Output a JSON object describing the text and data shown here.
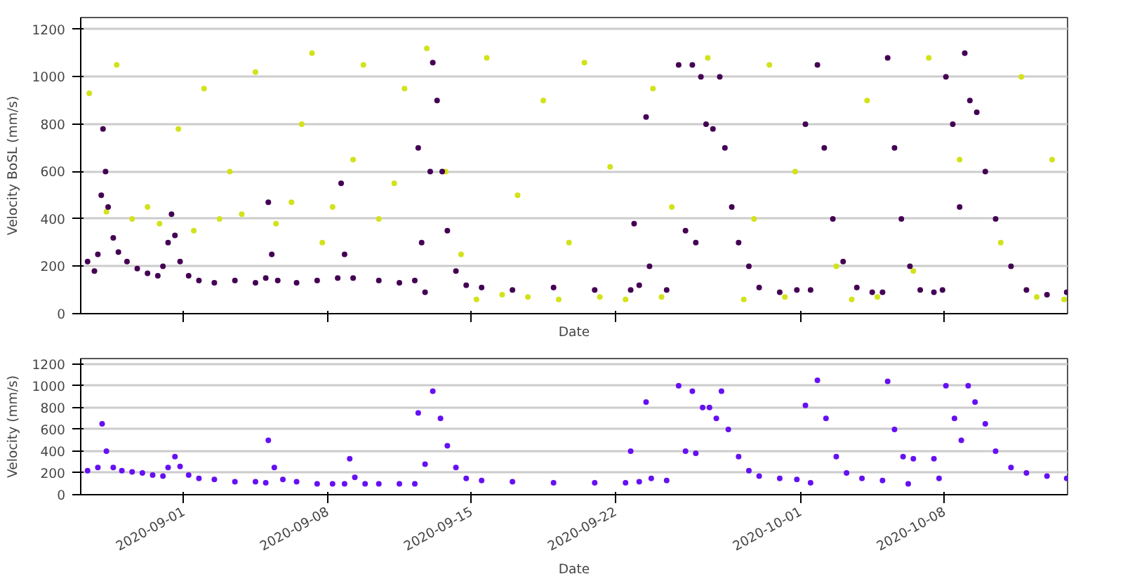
{
  "chart_data": [
    {
      "type": "scatter",
      "xlabel": "Date",
      "ylabel": "Velocity BoSL (mm/s)",
      "xlim": [
        "2020-08-27",
        "2020-10-14"
      ],
      "ylim": [
        0,
        1250
      ],
      "yticks": [
        0,
        200,
        400,
        600,
        800,
        1000,
        1200
      ],
      "xticks": [
        {
          "value": "2020-09-01",
          "label": null
        },
        {
          "value": "2020-09-08",
          "label": null
        },
        {
          "value": "2020-09-15",
          "label": null
        },
        {
          "value": "2020-09-22",
          "label": null
        },
        {
          "value": "2020-10-01",
          "label": null
        },
        {
          "value": "2020-10-08",
          "label": null
        }
      ],
      "tick_labels": "y",
      "grid": "y",
      "marker": "circle",
      "series": [
        {
          "color": "#d2e21b",
          "x": [
            "2020-08-27T10:00",
            "2020-08-28T06:00",
            "2020-08-28T18:00",
            "2020-08-29T12:00",
            "2020-08-30T06:00",
            "2020-08-30T20:00",
            "2020-08-31T18:00",
            "2020-09-01T12:00",
            "2020-09-02T00:00",
            "2020-09-02T18:00",
            "2020-09-03T06:00",
            "2020-09-03T20:00",
            "2020-09-04T12:00",
            "2020-09-05T12:00",
            "2020-09-06T06:00",
            "2020-09-06T18:00",
            "2020-09-07T06:00",
            "2020-09-07T18:00",
            "2020-09-08T06:00",
            "2020-09-09T06:00",
            "2020-09-09T18:00",
            "2020-09-10T12:00",
            "2020-09-11T06:00",
            "2020-09-11T18:00",
            "2020-09-12T20:00",
            "2020-09-13T18:00",
            "2020-09-14T12:00",
            "2020-09-15T06:00",
            "2020-09-15T18:00",
            "2020-09-16T12:00",
            "2020-09-17T06:00",
            "2020-09-17T18:00",
            "2020-09-18T12:00",
            "2020-09-19T06:00",
            "2020-09-19T18:00",
            "2020-09-20T12:00",
            "2020-09-21T06:00",
            "2020-09-21T18:00",
            "2020-09-22T12:00",
            "2020-09-23T20:00",
            "2020-09-24T06:00",
            "2020-09-24T18:00",
            "2020-09-26T12:00",
            "2020-09-28T06:00",
            "2020-09-28T18:00",
            "2020-09-29T12:00",
            "2020-09-30T06:00",
            "2020-09-30T18:00",
            "2020-10-02T18:00",
            "2020-10-03T12:00",
            "2020-10-04T06:00",
            "2020-10-04T18:00",
            "2020-10-06T12:00",
            "2020-10-07T06:00",
            "2020-10-08T18:00",
            "2020-10-10T18:00",
            "2020-10-11T18:00",
            "2020-10-12T12:00",
            "2020-10-13T06:00",
            "2020-10-13T20:00"
          ],
          "values": [
            930,
            430,
            1050,
            400,
            450,
            380,
            780,
            350,
            950,
            400,
            600,
            420,
            1020,
            380,
            470,
            800,
            1100,
            300,
            450,
            650,
            1050,
            400,
            550,
            950,
            1120,
            600,
            250,
            60,
            1080,
            80,
            500,
            70,
            900,
            60,
            300,
            1060,
            70,
            620,
            60,
            950,
            70,
            450,
            1080,
            60,
            400,
            1050,
            70,
            600,
            200,
            60,
            900,
            70,
            180,
            1080,
            650,
            300,
            1000,
            70,
            650,
            60
          ]
        },
        {
          "color": "#440154",
          "x": [
            "2020-08-27T08:00",
            "2020-08-27T16:00",
            "2020-08-27T20:00",
            "2020-08-28T00:00",
            "2020-08-28T02:00",
            "2020-08-28T05:00",
            "2020-08-28T08:00",
            "2020-08-28T14:00",
            "2020-08-28T20:00",
            "2020-08-29T06:00",
            "2020-08-29T18:00",
            "2020-08-30T06:00",
            "2020-08-30T18:00",
            "2020-08-31T00:00",
            "2020-08-31T06:00",
            "2020-08-31T10:00",
            "2020-08-31T14:00",
            "2020-08-31T20:00",
            "2020-09-01T06:00",
            "2020-09-01T18:00",
            "2020-09-02T12:00",
            "2020-09-03T12:00",
            "2020-09-04T12:00",
            "2020-09-05T00:00",
            "2020-09-05T03:00",
            "2020-09-05T07:00",
            "2020-09-05T14:00",
            "2020-09-06T12:00",
            "2020-09-07T12:00",
            "2020-09-08T12:00",
            "2020-09-08T16:00",
            "2020-09-08T20:00",
            "2020-09-09T06:00",
            "2020-09-10T12:00",
            "2020-09-11T12:00",
            "2020-09-12T06:00",
            "2020-09-12T10:00",
            "2020-09-12T14:00",
            "2020-09-12T18:00",
            "2020-09-13T00:00",
            "2020-09-13T03:00",
            "2020-09-13T08:00",
            "2020-09-13T14:00",
            "2020-09-13T20:00",
            "2020-09-14T06:00",
            "2020-09-14T18:00",
            "2020-09-15T12:00",
            "2020-09-17T00:00",
            "2020-09-19T00:00",
            "2020-09-21T00:00",
            "2020-09-22T18:00",
            "2020-09-22T22:00",
            "2020-09-23T04:00",
            "2020-09-23T12:00",
            "2020-09-23T16:00",
            "2020-09-24T12:00",
            "2020-09-25T02:00",
            "2020-09-25T10:00",
            "2020-09-25T18:00",
            "2020-09-25T22:00",
            "2020-09-26T04:00",
            "2020-09-26T10:00",
            "2020-09-26T18:00",
            "2020-09-27T02:00",
            "2020-09-27T08:00",
            "2020-09-27T16:00",
            "2020-09-28T00:00",
            "2020-09-28T12:00",
            "2020-09-29T00:00",
            "2020-09-30T00:00",
            "2020-09-30T20:00",
            "2020-10-01T06:00",
            "2020-10-01T12:00",
            "2020-10-01T20:00",
            "2020-10-02T04:00",
            "2020-10-02T14:00",
            "2020-10-03T02:00",
            "2020-10-03T18:00",
            "2020-10-04T12:00",
            "2020-10-05T00:00",
            "2020-10-05T06:00",
            "2020-10-05T14:00",
            "2020-10-05T22:00",
            "2020-10-06T08:00",
            "2020-10-06T20:00",
            "2020-10-07T12:00",
            "2020-10-07T22:00",
            "2020-10-08T02:00",
            "2020-10-08T10:00",
            "2020-10-08T18:00",
            "2020-10-09T00:00",
            "2020-10-09T06:00",
            "2020-10-09T14:00",
            "2020-10-10T00:00",
            "2020-10-10T12:00",
            "2020-10-11T06:00",
            "2020-10-12T00:00",
            "2020-10-13T00:00",
            "2020-10-13T23:00"
          ],
          "values": [
            220,
            180,
            250,
            500,
            780,
            600,
            450,
            320,
            260,
            220,
            190,
            170,
            160,
            200,
            300,
            420,
            330,
            220,
            160,
            140,
            130,
            140,
            130,
            150,
            470,
            250,
            140,
            130,
            140,
            150,
            550,
            250,
            150,
            140,
            130,
            140,
            700,
            300,
            90,
            600,
            1060,
            900,
            600,
            350,
            180,
            120,
            110,
            100,
            110,
            100,
            100,
            380,
            120,
            830,
            200,
            100,
            1050,
            350,
            1050,
            300,
            1000,
            800,
            780,
            1000,
            700,
            450,
            300,
            200,
            110,
            90,
            100,
            800,
            100,
            1050,
            700,
            400,
            220,
            110,
            90,
            90,
            1080,
            700,
            400,
            200,
            100,
            90,
            100,
            1000,
            800,
            450,
            1100,
            900,
            850,
            600,
            400,
            200,
            100,
            80,
            90
          ]
        }
      ]
    },
    {
      "type": "scatter",
      "xlabel": "Date",
      "ylabel": "Velocity (mm/s)",
      "xlim": [
        "2020-08-27",
        "2020-10-14"
      ],
      "ylim": [
        0,
        1250
      ],
      "yticks": [
        0,
        200,
        400,
        600,
        800,
        1000,
        1200
      ],
      "xticks": [
        "2020-09-01",
        "2020-09-08",
        "2020-09-15",
        "2020-09-22",
        "2020-10-01",
        "2020-10-08"
      ],
      "grid": "y",
      "marker": "circle",
      "series": [
        {
          "color": "#6610f2",
          "x": [
            "2020-08-27T08:00",
            "2020-08-27T20:00",
            "2020-08-28T01:00",
            "2020-08-28T06:00",
            "2020-08-28T14:00",
            "2020-08-29T00:00",
            "2020-08-29T12:00",
            "2020-08-30T00:00",
            "2020-08-30T12:00",
            "2020-08-31T00:00",
            "2020-08-31T06:00",
            "2020-08-31T14:00",
            "2020-08-31T20:00",
            "2020-09-01T06:00",
            "2020-09-01T18:00",
            "2020-09-02T12:00",
            "2020-09-03T12:00",
            "2020-09-04T12:00",
            "2020-09-05T00:00",
            "2020-09-05T03:00",
            "2020-09-05T10:00",
            "2020-09-05T20:00",
            "2020-09-06T12:00",
            "2020-09-07T12:00",
            "2020-09-08T06:00",
            "2020-09-08T20:00",
            "2020-09-09T02:00",
            "2020-09-09T08:00",
            "2020-09-09T20:00",
            "2020-09-10T12:00",
            "2020-09-11T12:00",
            "2020-09-12T06:00",
            "2020-09-12T10:00",
            "2020-09-12T18:00",
            "2020-09-13T03:00",
            "2020-09-13T12:00",
            "2020-09-13T20:00",
            "2020-09-14T06:00",
            "2020-09-14T18:00",
            "2020-09-15T12:00",
            "2020-09-17T00:00",
            "2020-09-19T00:00",
            "2020-09-21T00:00",
            "2020-09-22T12:00",
            "2020-09-22T18:00",
            "2020-09-23T04:00",
            "2020-09-23T12:00",
            "2020-09-23T18:00",
            "2020-09-24T12:00",
            "2020-09-25T02:00",
            "2020-09-25T10:00",
            "2020-09-25T18:00",
            "2020-09-25T22:00",
            "2020-09-26T06:00",
            "2020-09-26T14:00",
            "2020-09-26T22:00",
            "2020-09-27T04:00",
            "2020-09-27T12:00",
            "2020-09-28T00:00",
            "2020-09-28T12:00",
            "2020-09-29T00:00",
            "2020-09-30T00:00",
            "2020-09-30T20:00",
            "2020-10-01T06:00",
            "2020-10-01T12:00",
            "2020-10-01T20:00",
            "2020-10-02T06:00",
            "2020-10-02T18:00",
            "2020-10-03T06:00",
            "2020-10-04T00:00",
            "2020-10-05T00:00",
            "2020-10-05T06:00",
            "2020-10-05T14:00",
            "2020-10-06T00:00",
            "2020-10-06T06:00",
            "2020-10-06T12:00",
            "2020-10-07T12:00",
            "2020-10-07T18:00",
            "2020-10-08T02:00",
            "2020-10-08T12:00",
            "2020-10-08T20:00",
            "2020-10-09T04:00",
            "2020-10-09T12:00",
            "2020-10-10T00:00",
            "2020-10-10T12:00",
            "2020-10-11T06:00",
            "2020-10-12T00:00",
            "2020-10-13T00:00",
            "2020-10-13T23:00"
          ],
          "values": [
            220,
            250,
            650,
            400,
            250,
            220,
            210,
            200,
            180,
            170,
            250,
            350,
            260,
            180,
            150,
            140,
            120,
            120,
            110,
            500,
            250,
            140,
            120,
            100,
            100,
            100,
            330,
            160,
            100,
            100,
            100,
            100,
            750,
            280,
            950,
            700,
            450,
            250,
            150,
            130,
            120,
            110,
            110,
            110,
            400,
            120,
            850,
            150,
            130,
            1000,
            400,
            950,
            380,
            800,
            800,
            700,
            950,
            600,
            350,
            220,
            170,
            150,
            140,
            820,
            110,
            1050,
            700,
            350,
            200,
            150,
            130,
            1040,
            600,
            350,
            100,
            330,
            330,
            150,
            1000,
            700,
            500,
            1000,
            850,
            650,
            400,
            250,
            200,
            170,
            150
          ]
        }
      ]
    }
  ]
}
